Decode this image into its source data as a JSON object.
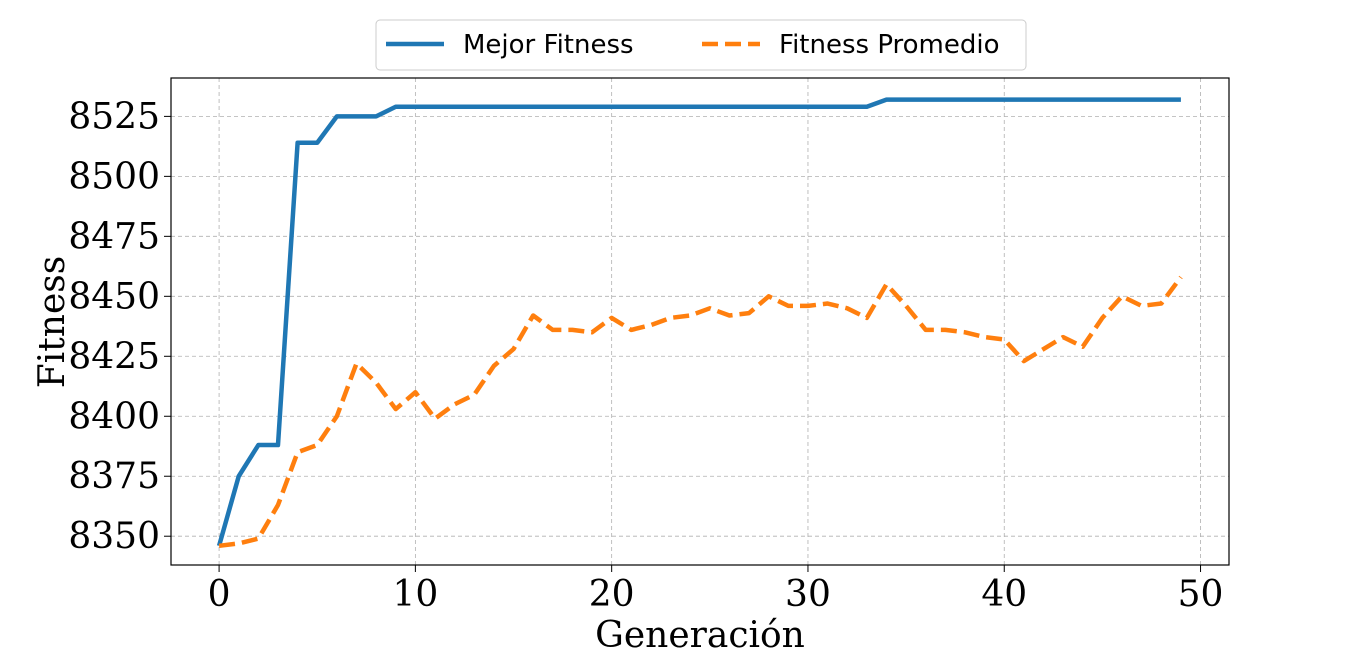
{
  "chart_data": {
    "type": "line",
    "xlabel": "Generación",
    "ylabel": "Fitness",
    "xlim": [
      -2.45,
      51.45
    ],
    "ylim": [
      8338,
      8541
    ],
    "xticks": [
      0,
      10,
      20,
      30,
      40,
      50
    ],
    "yticks": [
      8350,
      8375,
      8400,
      8425,
      8450,
      8475,
      8500,
      8525
    ],
    "grid": true,
    "legend_position": "top-center",
    "x": [
      0,
      1,
      2,
      3,
      4,
      5,
      6,
      7,
      8,
      9,
      10,
      11,
      12,
      13,
      14,
      15,
      16,
      17,
      18,
      19,
      20,
      21,
      22,
      23,
      24,
      25,
      26,
      27,
      28,
      29,
      30,
      31,
      32,
      33,
      34,
      35,
      36,
      37,
      38,
      39,
      40,
      41,
      42,
      43,
      44,
      45,
      46,
      47,
      48,
      49
    ],
    "series": [
      {
        "name": "Mejor Fitness",
        "color": "#1f77b4",
        "style": "solid",
        "values": [
          8346,
          8375,
          8388,
          8388,
          8514,
          8514,
          8525,
          8525,
          8525,
          8529,
          8529,
          8529,
          8529,
          8529,
          8529,
          8529,
          8529,
          8529,
          8529,
          8529,
          8529,
          8529,
          8529,
          8529,
          8529,
          8529,
          8529,
          8529,
          8529,
          8529,
          8529,
          8529,
          8529,
          8529,
          8532,
          8532,
          8532,
          8532,
          8532,
          8532,
          8532,
          8532,
          8532,
          8532,
          8532,
          8532,
          8532,
          8532,
          8532,
          8532
        ]
      },
      {
        "name": "Fitness Promedio",
        "color": "#ff7f0e",
        "style": "dashed",
        "values": [
          8346,
          8347,
          8349,
          8363,
          8385,
          8388,
          8400,
          8422,
          8414,
          8403,
          8410,
          8399,
          8405,
          8409,
          8421,
          8428,
          8442,
          8436,
          8436,
          8435,
          8441,
          8436,
          8438,
          8441,
          8442,
          8445,
          8442,
          8443,
          8450,
          8446,
          8446,
          8447,
          8445,
          8441,
          8455,
          8446,
          8436,
          8436,
          8435,
          8433,
          8432,
          8423,
          8428,
          8433,
          8429,
          8441,
          8450,
          8446,
          8447,
          8458
        ]
      }
    ]
  }
}
